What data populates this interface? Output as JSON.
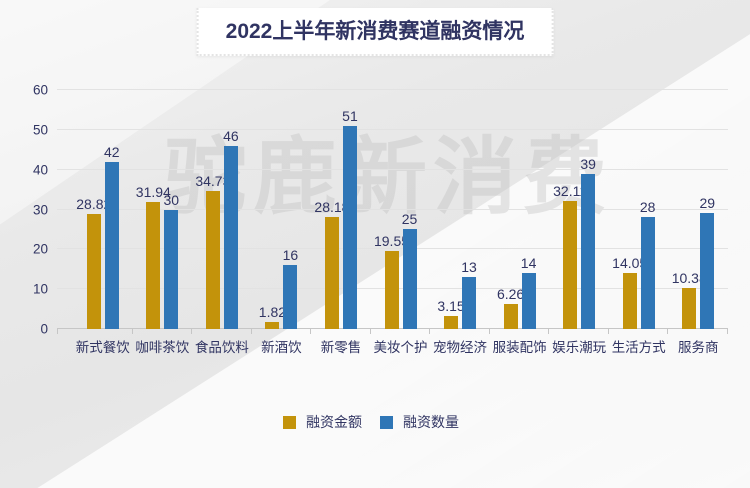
{
  "title": "2022上半年新消费赛道融资情况",
  "watermark": "驼鹿新消费",
  "legend": [
    {
      "label": "融资金额",
      "color": "#c3930b"
    },
    {
      "label": "融资数量",
      "color": "#2f76b6"
    }
  ],
  "chart_data": {
    "type": "bar",
    "title": "2022上半年新消费赛道融资情况",
    "categories": [
      "新式餐饮",
      "咖啡茶饮",
      "食品饮料",
      "新酒饮",
      "新零售",
      "美妆个护",
      "宠物经济",
      "服装配饰",
      "娱乐潮玩",
      "生活方式",
      "服务商"
    ],
    "series": [
      {
        "name": "融资金额",
        "color": "#c3930b",
        "values": [
          28.82,
          31.94,
          34.73,
          1.82,
          28.18,
          19.55,
          3.15,
          6.26,
          32.11,
          14.05,
          10.38
        ]
      },
      {
        "name": "融资数量",
        "color": "#2f76b6",
        "values": [
          42,
          30,
          46,
          16,
          51,
          25,
          13,
          14,
          39,
          28,
          29
        ]
      }
    ],
    "xlabel": "",
    "ylabel": "",
    "ylim": [
      0,
      60
    ],
    "yticks": [
      0,
      10,
      20,
      30,
      40,
      50,
      60
    ],
    "grid": true,
    "value_labels": true,
    "legend_position": "bottom",
    "text_color": "#303462",
    "watermark_text": "驼鹿新消费"
  }
}
